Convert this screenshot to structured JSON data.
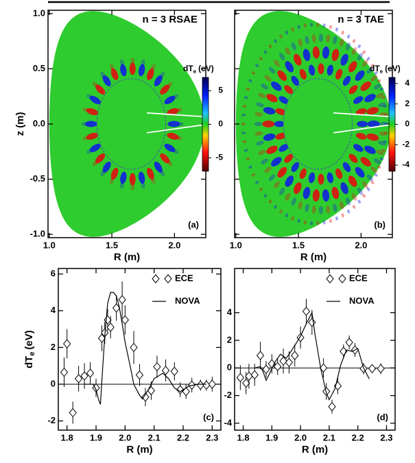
{
  "chart_data": [
    {
      "type": "heatmap",
      "title": "n = 3 RSAE",
      "panel": "(a)",
      "xlabel": "R (m)",
      "ylabel": "z (m)",
      "xlim": [
        0.99,
        2.25
      ],
      "ylim": [
        -1.03,
        1.03
      ],
      "xticks": [
        {
          "value": 1.0,
          "label": "1.0"
        },
        1.5,
        {
          "value": 2.0,
          "label": "2.0"
        }
      ],
      "yticks": [
        {
          "value": -1.0,
          "label": "-1.0"
        },
        -0.5,
        {
          "value": 0.0,
          "label": "0.0"
        },
        0.5,
        {
          "value": 1.0,
          "label": "1.0"
        }
      ],
      "colorbar": {
        "label": {
          "main": "dT",
          "sub": "e",
          "unit": "(eV)"
        },
        "lim": [
          -7,
          7
        ],
        "ticks": [
          -5,
          0,
          5
        ]
      }
    },
    {
      "type": "heatmap",
      "title": "n = 3 TAE",
      "panel": "(b)",
      "xlabel": "R (m)",
      "xlim": [
        0.99,
        2.25
      ],
      "ylim": [
        -1.03,
        1.03
      ],
      "xticks": [
        {
          "value": 1.0,
          "label": "1.0"
        },
        1.5,
        {
          "value": 2.0,
          "label": "2.0"
        }
      ],
      "colorbar": {
        "label": {
          "main": "dT",
          "sub": "e",
          "unit": "(eV)"
        },
        "lim": [
          -4.6,
          4.6
        ],
        "ticks": [
          -4,
          -2,
          0,
          2,
          4
        ]
      }
    },
    {
      "type": "line",
      "panel": "(c)",
      "xlabel": "R (m)",
      "ylabel": {
        "main": "dT",
        "sub": "e",
        "unit": "(eV)"
      },
      "xlim": [
        1.77,
        2.33
      ],
      "ylim": [
        -2.5,
        6.3
      ],
      "xticks": [
        1.8,
        1.9,
        {
          "value": 2.0,
          "label": "2.0"
        },
        2.1,
        2.2,
        2.3
      ],
      "yticks": [
        -2,
        0,
        2,
        4,
        6
      ],
      "series": [
        {
          "name": "ECE",
          "color": "#000000",
          "x": [
            1.79,
            1.8,
            1.82,
            1.84,
            1.86,
            1.88,
            1.9,
            1.92,
            1.93,
            1.94,
            1.95,
            1.97,
            1.99,
            2.0,
            2.03,
            2.05,
            2.07,
            2.09,
            2.11,
            2.14,
            2.17,
            2.19,
            2.21,
            2.23,
            2.26,
            2.28,
            2.3
          ],
          "values": [
            0.65,
            2.2,
            -1.55,
            0.3,
            0.45,
            0.6,
            -0.2,
            2.5,
            2.8,
            3.5,
            3.1,
            4.15,
            4.6,
            3.5,
            2.0,
            0.5,
            -0.7,
            -0.35,
            0.95,
            0.75,
            0.7,
            -0.3,
            -0.4,
            -0.05,
            -0.05,
            -0.05,
            0.0
          ],
          "errors": [
            0.8,
            0.8,
            0.6,
            0.7,
            0.7,
            0.6,
            0.5,
            0.7,
            0.6,
            0.6,
            0.6,
            0.7,
            1.0,
            0.8,
            0.9,
            0.6,
            0.5,
            0.5,
            0.6,
            0.6,
            0.5,
            0.4,
            0.4,
            0.4,
            0.3,
            0.3,
            0.4
          ]
        },
        {
          "name": "NOVA",
          "color": "#000000",
          "x": [
            1.86,
            1.89,
            1.9,
            1.91,
            1.915,
            1.92,
            1.93,
            1.94,
            1.95,
            1.96,
            1.97,
            1.98,
            1.99,
            2.0,
            2.02,
            2.03,
            2.05,
            2.06,
            2.08,
            2.1,
            2.13,
            2.15,
            2.17,
            2.19,
            2.22,
            2.25,
            2.28
          ],
          "values": [
            0.0,
            0.0,
            -0.3,
            -0.9,
            -1.1,
            0.2,
            2.6,
            4.4,
            5.0,
            5.0,
            4.8,
            4.2,
            3.3,
            2.3,
            0.8,
            0.0,
            -0.6,
            -0.8,
            -0.3,
            0.3,
            0.6,
            0.3,
            -0.2,
            -0.4,
            -0.1,
            0.0,
            0.0
          ]
        }
      ]
    },
    {
      "type": "line",
      "panel": "(d)",
      "xlabel": "R (m)",
      "xlim": [
        1.77,
        2.33
      ],
      "ylim": [
        -4.5,
        7.2
      ],
      "xticks": [
        1.8,
        1.9,
        {
          "value": 2.0,
          "label": "2.0"
        },
        2.1,
        2.2,
        2.3
      ],
      "yticks": [
        -4,
        -2,
        0,
        2,
        4
      ],
      "series": [
        {
          "name": "ECE",
          "color": "#000000",
          "x": [
            1.79,
            1.81,
            1.82,
            1.84,
            1.86,
            1.88,
            1.9,
            1.92,
            1.94,
            1.96,
            1.98,
            2.0,
            2.02,
            2.04,
            2.08,
            2.09,
            2.11,
            2.13,
            2.15,
            2.17,
            2.19,
            2.22,
            2.25,
            2.28
          ],
          "values": [
            -0.7,
            -1.1,
            -0.6,
            -0.5,
            0.9,
            -0.1,
            0.3,
            0.1,
            0.5,
            0.4,
            0.9,
            2.2,
            4.1,
            3.3,
            0.0,
            -1.7,
            -2.8,
            -1.3,
            1.2,
            1.85,
            1.3,
            -0.05,
            -0.05,
            -0.05
          ],
          "errors": [
            0.9,
            0.8,
            0.9,
            0.8,
            1.0,
            0.6,
            0.7,
            0.6,
            0.9,
            0.8,
            0.8,
            0.8,
            0.9,
            0.9,
            0.7,
            0.6,
            0.5,
            0.6,
            0.5,
            0.5,
            0.5,
            0.4,
            0.3,
            0.4
          ]
        },
        {
          "name": "NOVA",
          "color": "#000000",
          "x": [
            1.84,
            1.86,
            1.87,
            1.88,
            1.89,
            1.91,
            1.93,
            1.95,
            1.97,
            2.0,
            2.02,
            2.04,
            2.05,
            2.07,
            2.09,
            2.1,
            2.12,
            2.14,
            2.16,
            2.18,
            2.2,
            2.22,
            2.24
          ],
          "values": [
            0.0,
            0.1,
            -0.3,
            -0.9,
            -0.5,
            0.4,
            1.0,
            0.7,
            1.3,
            2.3,
            3.2,
            4.0,
            2.5,
            0.0,
            -1.8,
            -2.3,
            -1.5,
            0.2,
            1.3,
            1.2,
            1.4,
            0.0,
            -0.8
          ]
        }
      ]
    }
  ]
}
